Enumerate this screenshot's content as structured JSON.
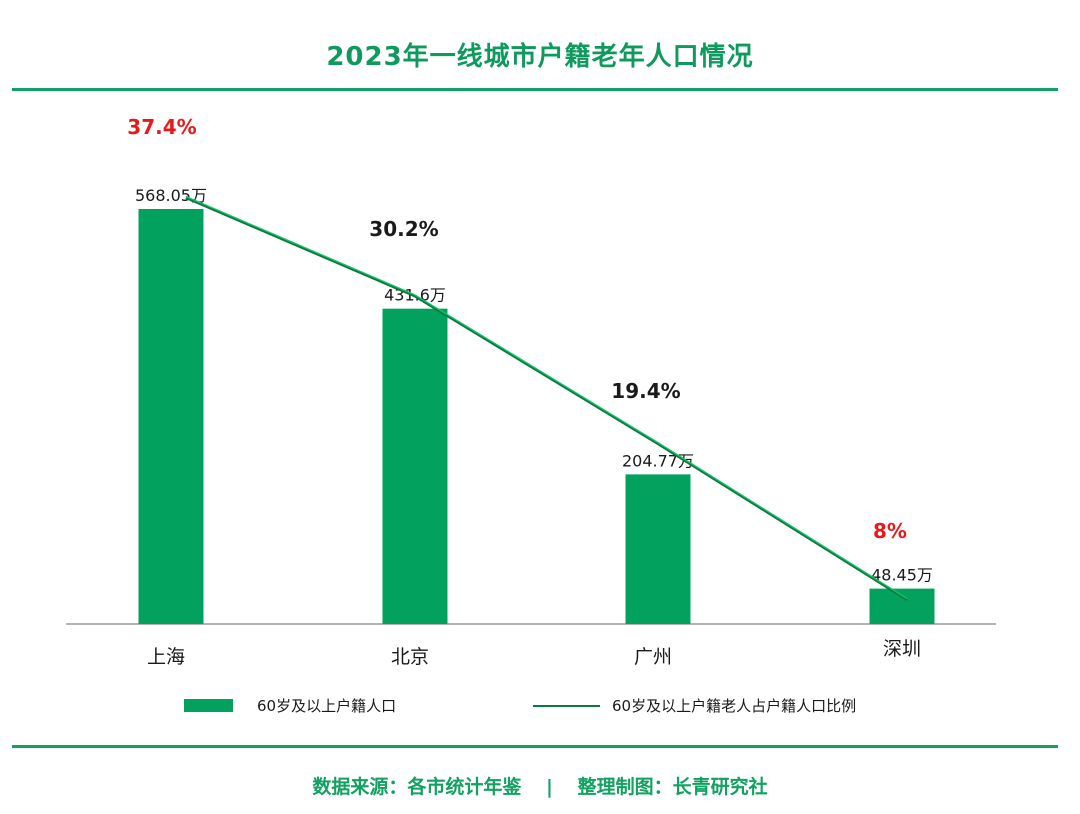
{
  "chart_data": {
    "type": "bar",
    "title": "2023年一线城市户籍老年人口情况",
    "categories": [
      "上海",
      "北京",
      "广州",
      "深圳"
    ],
    "series": [
      {
        "name": "60岁及以上户籍人口",
        "values": [
          568.05,
          431.6,
          204.77,
          48.45
        ],
        "labels": [
          "568.05万",
          "431.6万",
          "204.77万",
          "48.45万"
        ],
        "color": "#03a15e"
      },
      {
        "name": "60岁及以上户籍老人占户籍人口比例",
        "type": "line",
        "values": [
          37.4,
          30.2,
          19.4,
          8
        ],
        "labels": [
          "37.4%",
          "30.2%",
          "19.4%",
          "8%"
        ],
        "label_colors": [
          "#e8191a",
          "#1a1a1a",
          "#1a1a1a",
          "#e8191a"
        ],
        "color": "#15c46a"
      }
    ],
    "xlabel": "",
    "ylabel": "",
    "grid": false,
    "legend": "bottom"
  },
  "footer": {
    "source": "数据来源：各市统计年鉴",
    "separator": "|",
    "credit": "整理制图：长青研究社"
  }
}
